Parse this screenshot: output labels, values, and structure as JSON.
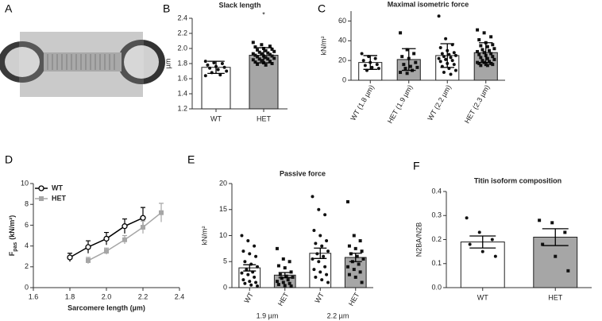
{
  "panel_a": {
    "label": "A"
  },
  "chart_data": [
    {
      "type": "bar",
      "panel": "B",
      "title": "Slack length",
      "ylabel": "µm",
      "annotation": "*",
      "categories": [
        "WT",
        "HET"
      ],
      "values": [
        1.75,
        1.91
      ],
      "errors": [
        0.08,
        0.1
      ],
      "colors": [
        "#ffffff",
        "#a6a6a6"
      ],
      "markers": [
        "circle",
        "square"
      ],
      "points": [
        [
          1.83,
          1.81,
          1.8,
          1.78,
          1.76,
          1.75,
          1.74,
          1.72,
          1.7,
          1.68,
          1.65,
          1.64
        ],
        [
          2.08,
          2.05,
          2.03,
          2.02,
          2.0,
          1.99,
          1.98,
          1.97,
          1.96,
          1.95,
          1.94,
          1.93,
          1.93,
          1.92,
          1.91,
          1.9,
          1.9,
          1.89,
          1.88,
          1.87,
          1.86,
          1.86,
          1.85,
          1.84,
          1.83,
          1.82,
          1.81,
          1.8,
          1.79,
          1.78
        ]
      ],
      "ylim": [
        1.2,
        2.4
      ],
      "yticks": [
        1.2,
        1.4,
        1.6,
        1.8,
        {
          "value": 2,
          "label": "2.0"
        },
        2.2,
        2.4
      ]
    },
    {
      "type": "bar",
      "panel": "C",
      "title": "Maximal isometric force",
      "ylabel": "kN/m²",
      "rotate_labels": true,
      "categories": [
        "WT (1.8 µm)",
        "HET (1.9 µm)",
        "WT (2.2 µm)",
        "HET (2.3 µm)"
      ],
      "values": [
        18,
        21,
        25,
        28
      ],
      "errors": [
        7,
        11,
        12,
        10
      ],
      "colors": [
        "#ffffff",
        "#a6a6a6",
        "#ffffff",
        "#a6a6a6"
      ],
      "markers": [
        "circle",
        "square",
        "circle",
        "square"
      ],
      "points": [
        [
          27,
          24,
          22,
          20,
          18,
          16,
          15,
          13,
          12,
          10
        ],
        [
          48,
          31,
          27,
          24,
          22,
          18,
          16,
          14,
          13,
          12,
          10,
          8,
          7
        ],
        [
          65,
          42,
          36,
          33,
          30,
          28,
          27,
          26,
          25,
          24,
          23,
          22,
          21,
          20,
          19,
          17,
          16,
          14,
          12,
          10,
          8,
          6
        ],
        [
          51,
          48,
          44,
          41,
          38,
          36,
          35,
          34,
          32,
          31,
          30,
          29,
          28,
          27,
          26,
          25,
          24,
          23,
          22,
          21,
          20,
          19,
          18,
          18,
          17,
          17,
          16,
          16,
          15,
          15
        ]
      ],
      "ylim": [
        0,
        70
      ],
      "yticks": [
        0,
        20,
        40,
        60
      ]
    },
    {
      "type": "line",
      "panel": "D",
      "ylabel": "F",
      "ylabel_sub": "pas",
      "ylabel_unit": "(kN/m²)",
      "xlabel": "Sarcomere length (µm)",
      "legend": "top-left",
      "series": [
        {
          "name": "WT",
          "color": "#000000",
          "marker": "open-circle",
          "x": [
            1.8,
            1.9,
            2.0,
            2.1,
            2.2
          ],
          "values": [
            2.9,
            3.9,
            4.7,
            5.9,
            6.7
          ],
          "errors": [
            0.4,
            0.6,
            0.6,
            0.7,
            1.0
          ]
        },
        {
          "name": "HET",
          "color": "#a6a6a6",
          "marker": "square",
          "x": [
            1.9,
            2.0,
            2.1,
            2.2,
            2.3
          ],
          "values": [
            2.6,
            3.5,
            4.6,
            5.8,
            7.2
          ],
          "errors": [
            0.3,
            0.3,
            0.4,
            0.6,
            0.9
          ]
        }
      ],
      "xlim": [
        1.6,
        2.4
      ],
      "xticks": [
        1.6,
        1.8,
        {
          "value": 2,
          "label": "2.0"
        },
        2.2,
        2.4
      ],
      "ylim": [
        0,
        10
      ],
      "yticks": [
        0,
        2,
        4,
        6,
        8,
        10
      ]
    },
    {
      "type": "bar",
      "panel": "E",
      "title": "Passive force",
      "ylabel": "kN/m²",
      "rotate_labels": true,
      "categories": [
        "WT",
        "HET",
        "WT",
        "HET"
      ],
      "groups": [
        "1.9 µm",
        "2.2 µm"
      ],
      "values": [
        3.8,
        2.4,
        6.6,
        5.8
      ],
      "errors": [
        0.6,
        0.5,
        1.0,
        0.8
      ],
      "colors": [
        "#ffffff",
        "#a6a6a6",
        "#ffffff",
        "#a6a6a6"
      ],
      "markers": [
        "circle",
        "square",
        "circle",
        "square"
      ],
      "points": [
        [
          10,
          9,
          8,
          7,
          6.5,
          6,
          5,
          4.5,
          4,
          3.5,
          3,
          2.8,
          2.5,
          2,
          1.5,
          1.2,
          1,
          0.8,
          0.5,
          0.3
        ],
        [
          7.5,
          5.5,
          5,
          4.2,
          3.8,
          3,
          2.5,
          2.2,
          2,
          1.8,
          1.5,
          1.2,
          1,
          0.8,
          0.6,
          0.4,
          0.3
        ],
        [
          17.5,
          15,
          14,
          11,
          10,
          9,
          8.5,
          8,
          7,
          6.5,
          6,
          5.5,
          5,
          4,
          3.5,
          3,
          2.5,
          2,
          1.5,
          1
        ],
        [
          16.5,
          10,
          9,
          8,
          7.5,
          7,
          6.5,
          6,
          5.5,
          5,
          4.5,
          4,
          3.5,
          3,
          2.5,
          2,
          1
        ]
      ],
      "ylim": [
        0,
        20
      ],
      "yticks": [
        0,
        5,
        10,
        15,
        20
      ]
    },
    {
      "type": "bar",
      "panel": "F",
      "title": "Titin isoform composition",
      "ylabel": "N2BA/N2B",
      "categories": [
        "WT",
        "HET"
      ],
      "values": [
        0.19,
        0.21
      ],
      "errors": [
        0.025,
        0.035
      ],
      "colors": [
        "#ffffff",
        "#a6a6a6"
      ],
      "markers": [
        "circle",
        "square"
      ],
      "points": [
        [
          0.29,
          0.23,
          0.2,
          0.18,
          0.15,
          0.13
        ],
        [
          0.28,
          0.27,
          0.23,
          0.18,
          0.13,
          0.07
        ]
      ],
      "ylim": [
        0,
        0.4
      ],
      "yticks": [
        {
          "value": 0,
          "label": "0.0"
        },
        0.1,
        0.2,
        0.3,
        0.4
      ]
    }
  ]
}
